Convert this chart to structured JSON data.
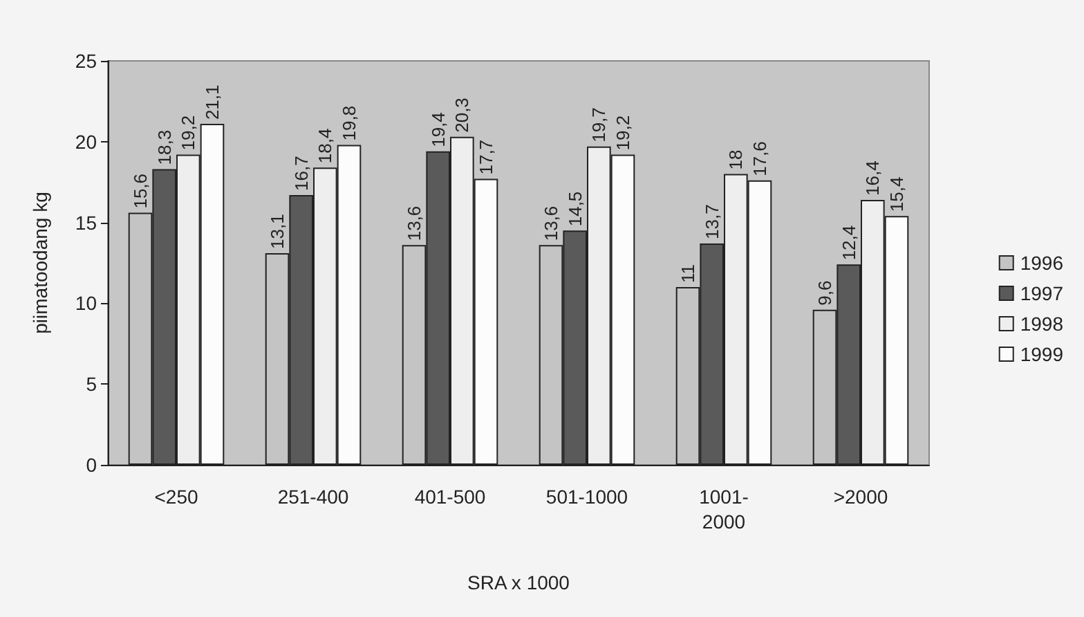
{
  "chart_data": {
    "type": "bar",
    "xlabel": "SRA x 1000",
    "ylabel": "piimatoodang kg",
    "categories": [
      "<250",
      "251-400",
      "401-500",
      "501-1000",
      "1001-\n2000",
      ">2000"
    ],
    "series": [
      {
        "name": "1996",
        "color": "#c4c4c4",
        "values": [
          15.6,
          13.1,
          13.6,
          13.6,
          11,
          9.6
        ],
        "value_labels": [
          "15,6",
          "13,1",
          "13,6",
          "13,6",
          "11",
          "9,6"
        ]
      },
      {
        "name": "1997",
        "color": "#5a5a5a",
        "values": [
          18.3,
          16.7,
          19.4,
          14.5,
          13.7,
          12.4
        ],
        "value_labels": [
          "18,3",
          "16,7",
          "19,4",
          "14,5",
          "13,7",
          "12,4"
        ]
      },
      {
        "name": "1998",
        "color": "#eeeeee",
        "values": [
          19.2,
          18.4,
          20.3,
          19.7,
          18,
          16.4
        ],
        "value_labels": [
          "19,2",
          "18,4",
          "20,3",
          "19,7",
          "18",
          "16,4"
        ]
      },
      {
        "name": "1999",
        "color": "#fcfcfc",
        "values": [
          21.1,
          19.8,
          17.7,
          19.2,
          17.6,
          15.4
        ],
        "value_labels": [
          "21,1",
          "19,8",
          "17,7",
          "19,2",
          "17,6",
          "15,4"
        ]
      }
    ],
    "ylim": [
      0,
      25
    ],
    "yticks": [
      0,
      5,
      10,
      15,
      20,
      25
    ],
    "legend": "right"
  }
}
